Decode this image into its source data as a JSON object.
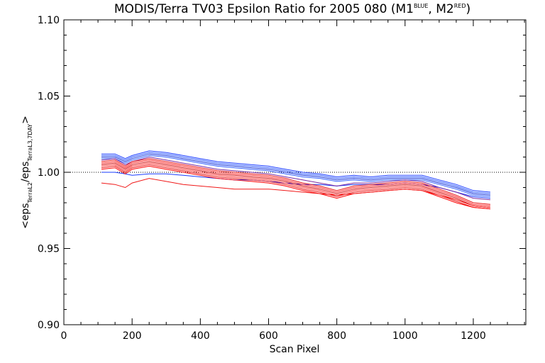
{
  "chart_data": {
    "type": "line",
    "title_parts": {
      "main": "MODIS/Terra TV03 Epsilon Ratio for 2005 080 (M1",
      "sup1": "BLUE",
      "mid": ", M2",
      "sup2": "RED",
      "end": ")"
    },
    "xlabel": "Scan Pixel",
    "ylabel_parts": {
      "a": "<eps",
      "sub1": "TerraL2",
      "b": "/eps",
      "sub2": "TerraL3,7DAY",
      "c": ">"
    },
    "xlim": [
      0,
      1354
    ],
    "ylim": [
      0.9,
      1.1
    ],
    "x_ticks": [
      "0",
      "200",
      "400",
      "600",
      "800",
      "1000",
      "1200"
    ],
    "y_ticks": [
      "0.90",
      "0.95",
      "1.00",
      "1.05",
      "1.10"
    ],
    "reference_line": 1.0,
    "reference_style": "dotted",
    "x": [
      110,
      150,
      180,
      200,
      250,
      300,
      350,
      400,
      450,
      500,
      550,
      600,
      650,
      700,
      750,
      800,
      850,
      900,
      950,
      1000,
      1050,
      1100,
      1150,
      1200,
      1250
    ],
    "series": [
      {
        "color": "#1a3cff",
        "values": [
          1.012,
          1.012,
          1.009,
          1.011,
          1.014,
          1.013,
          1.011,
          1.009,
          1.007,
          1.006,
          1.005,
          1.004,
          1.002,
          1.0,
          0.999,
          0.997,
          0.998,
          0.997,
          0.998,
          0.998,
          0.998,
          0.995,
          0.992,
          0.988,
          0.987
        ]
      },
      {
        "color": "#2855ff",
        "values": [
          1.011,
          1.011,
          1.008,
          1.01,
          1.013,
          1.012,
          1.01,
          1.008,
          1.006,
          1.005,
          1.004,
          1.003,
          1.001,
          0.999,
          0.998,
          0.996,
          0.997,
          0.996,
          0.997,
          0.997,
          0.997,
          0.994,
          0.991,
          0.987,
          0.986
        ]
      },
      {
        "color": "#0f2fd8",
        "values": [
          1.01,
          1.01,
          1.007,
          1.009,
          1.012,
          1.011,
          1.009,
          1.007,
          1.005,
          1.004,
          1.003,
          1.002,
          1.0,
          0.998,
          0.997,
          0.995,
          0.996,
          0.995,
          0.996,
          0.996,
          0.996,
          0.993,
          0.99,
          0.986,
          0.985
        ]
      },
      {
        "color": "#3060ff",
        "values": [
          1.009,
          1.009,
          1.006,
          1.008,
          1.011,
          1.01,
          1.008,
          1.006,
          1.004,
          1.003,
          1.002,
          1.001,
          0.999,
          0.997,
          0.996,
          0.994,
          0.995,
          0.994,
          0.995,
          0.995,
          0.995,
          0.992,
          0.989,
          0.985,
          0.984
        ]
      },
      {
        "color": "#1a3cff",
        "values": [
          1.0,
          1.0,
          0.999,
          0.998,
          0.999,
          0.999,
          0.998,
          0.997,
          0.996,
          0.995,
          0.995,
          0.994,
          0.993,
          0.992,
          0.992,
          0.991,
          0.992,
          0.992,
          0.992,
          0.993,
          0.992,
          0.99,
          0.987,
          0.984,
          0.983
        ]
      },
      {
        "color": "#7a2aa0",
        "values": [
          1.008,
          1.009,
          1.005,
          1.007,
          1.01,
          1.008,
          1.006,
          1.004,
          1.002,
          1.001,
          1.0,
          0.999,
          0.997,
          0.995,
          0.993,
          0.991,
          0.993,
          0.993,
          0.994,
          0.995,
          0.994,
          0.99,
          0.987,
          0.983,
          0.982
        ]
      },
      {
        "color": "#e81010",
        "values": [
          1.007,
          1.008,
          1.004,
          1.007,
          1.009,
          1.007,
          1.005,
          1.003,
          1.001,
          1.0,
          0.999,
          0.998,
          0.996,
          0.993,
          0.991,
          0.988,
          0.991,
          0.992,
          0.993,
          0.994,
          0.993,
          0.989,
          0.985,
          0.98,
          0.979
        ]
      },
      {
        "color": "#ff2020",
        "values": [
          1.006,
          1.007,
          1.003,
          1.006,
          1.008,
          1.006,
          1.004,
          1.002,
          1.0,
          0.999,
          0.998,
          0.997,
          0.995,
          0.992,
          0.99,
          0.987,
          0.99,
          0.991,
          0.992,
          0.993,
          0.992,
          0.988,
          0.984,
          0.979,
          0.978
        ]
      },
      {
        "color": "#d00000",
        "values": [
          1.005,
          1.006,
          1.002,
          1.005,
          1.007,
          1.005,
          1.003,
          1.001,
          0.999,
          0.998,
          0.997,
          0.996,
          0.994,
          0.991,
          0.989,
          0.986,
          0.989,
          0.99,
          0.991,
          0.992,
          0.991,
          0.987,
          0.983,
          0.978,
          0.977
        ]
      },
      {
        "color": "#ff3030",
        "values": [
          1.004,
          1.005,
          1.001,
          1.004,
          1.006,
          1.004,
          1.002,
          1.0,
          0.998,
          0.997,
          0.996,
          0.995,
          0.993,
          0.99,
          0.988,
          0.985,
          0.988,
          0.989,
          0.99,
          0.991,
          0.99,
          0.986,
          0.982,
          0.978,
          0.977
        ]
      },
      {
        "color": "#e81010",
        "values": [
          1.003,
          1.004,
          1.0,
          1.003,
          1.005,
          1.003,
          1.001,
          0.999,
          0.997,
          0.996,
          0.995,
          0.994,
          0.992,
          0.989,
          0.987,
          0.984,
          0.987,
          0.988,
          0.989,
          0.99,
          0.989,
          0.985,
          0.981,
          0.977,
          0.976
        ]
      },
      {
        "color": "#ff0000",
        "values": [
          1.002,
          1.003,
          0.999,
          1.002,
          1.004,
          1.002,
          1.0,
          0.998,
          0.996,
          0.995,
          0.994,
          0.993,
          0.991,
          0.988,
          0.986,
          0.983,
          0.986,
          0.987,
          0.988,
          0.989,
          0.988,
          0.984,
          0.98,
          0.977,
          0.976
        ]
      },
      {
        "color": "#f01818",
        "values": [
          0.993,
          0.992,
          0.99,
          0.993,
          0.996,
          0.994,
          0.992,
          0.991,
          0.99,
          0.989,
          0.989,
          0.989,
          0.988,
          0.987,
          0.986,
          0.985,
          0.986,
          0.987,
          0.988,
          0.989,
          0.988,
          0.985,
          0.982,
          0.978,
          0.977
        ]
      }
    ]
  }
}
